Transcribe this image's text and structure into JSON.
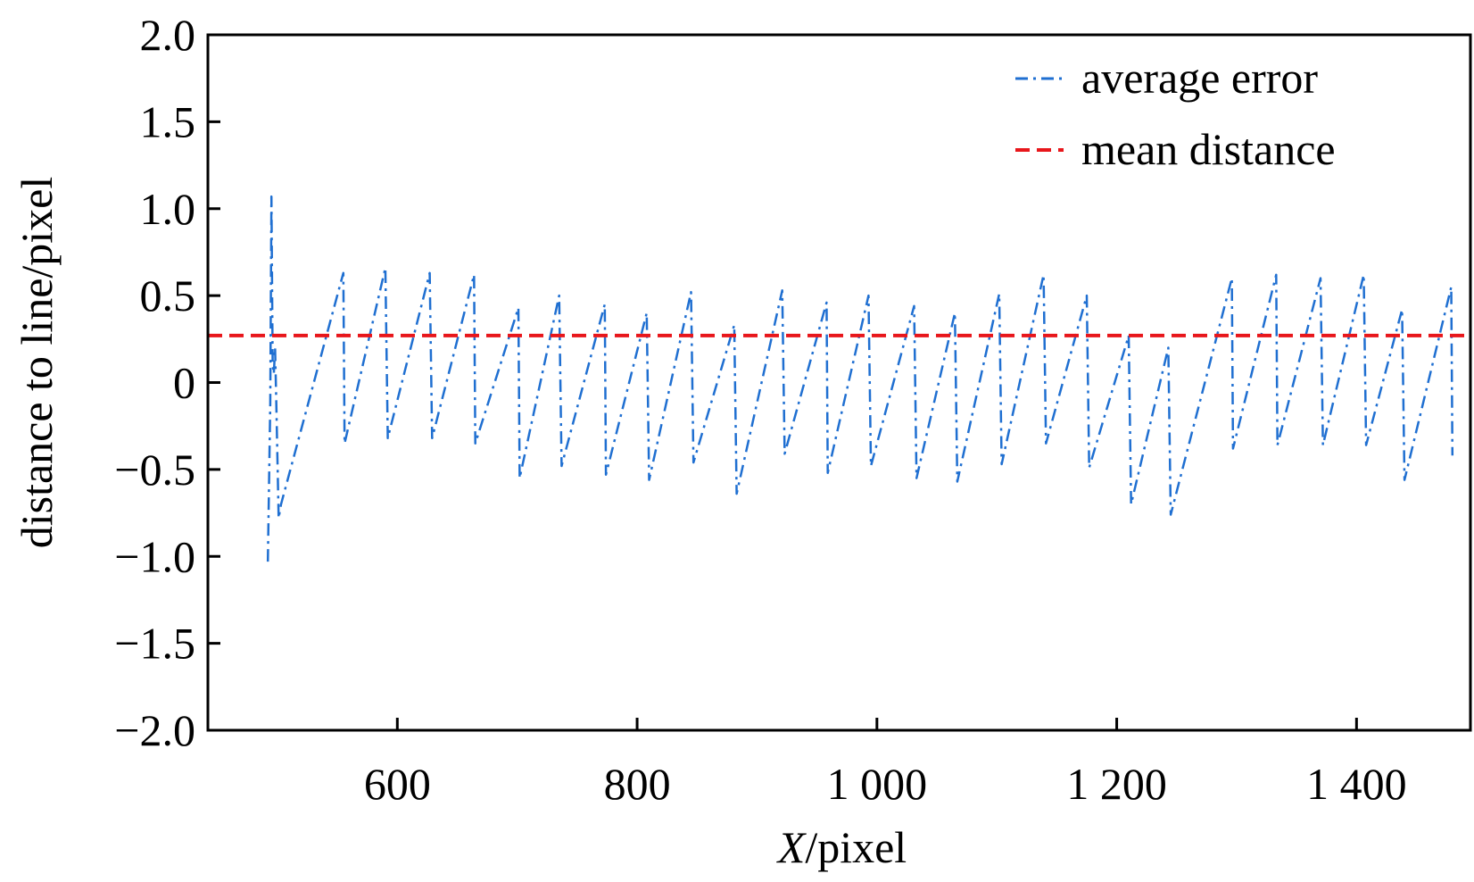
{
  "chart_data": {
    "type": "line",
    "title": "",
    "xlabel": "/pixel",
    "xlabel_italic_part": "X",
    "ylabel": "distance to line/pixel",
    "xlim": [
      442,
      1495
    ],
    "ylim": [
      -2.0,
      2.0
    ],
    "x_ticks": [
      {
        "value": 600,
        "label": "600"
      },
      {
        "value": 800,
        "label": "800"
      },
      {
        "value": 1000,
        "label": "1 000"
      },
      {
        "value": 1200,
        "label": "1 200"
      },
      {
        "value": 1400,
        "label": "1 400"
      }
    ],
    "y_ticks": [
      {
        "value": 2.0,
        "label": "2.0"
      },
      {
        "value": 1.5,
        "label": "1.5"
      },
      {
        "value": 1.0,
        "label": "1.0"
      },
      {
        "value": 0.5,
        "label": "0.5"
      },
      {
        "value": 0.0,
        "label": "0"
      },
      {
        "value": -0.5,
        "label": "−0.5"
      },
      {
        "value": -1.0,
        "label": "−1.0"
      },
      {
        "value": -1.5,
        "label": "−1.5"
      },
      {
        "value": -2.0,
        "label": "−2.0"
      }
    ],
    "grid": false,
    "legend_position": "top-right",
    "series": [
      {
        "name": "average error",
        "color": "#1f6fd1",
        "style": "dash-dot",
        "x": [
          492,
          494,
          495,
          496,
          497,
          498,
          499,
          501,
          503,
          555,
          556,
          590,
          592,
          627,
          629,
          664,
          665,
          701,
          702,
          735,
          737,
          773,
          774,
          808,
          810,
          845,
          847,
          881,
          883,
          921,
          923,
          958,
          959,
          993,
          995,
          1031,
          1033,
          1065,
          1067,
          1102,
          1104,
          1139,
          1141,
          1175,
          1177,
          1210,
          1212,
          1243,
          1245,
          1296,
          1297,
          1333,
          1334,
          1370,
          1372,
          1406,
          1408,
          1438,
          1440,
          1479,
          1480
        ],
        "y": [
          -1.03,
          -0.12,
          1.07,
          0.1,
          0.05,
          0.2,
          -0.1,
          -0.78,
          -0.7,
          0.63,
          -0.35,
          0.66,
          -0.32,
          0.63,
          -0.32,
          0.62,
          -0.35,
          0.43,
          -0.55,
          0.5,
          -0.48,
          0.45,
          -0.53,
          0.4,
          -0.56,
          0.52,
          -0.46,
          0.33,
          -0.64,
          0.53,
          -0.41,
          0.46,
          -0.52,
          0.5,
          -0.48,
          0.44,
          -0.55,
          0.4,
          -0.57,
          0.51,
          -0.47,
          0.62,
          -0.35,
          0.5,
          -0.49,
          0.27,
          -0.7,
          0.2,
          -0.76,
          0.6,
          -0.38,
          0.62,
          -0.36,
          0.6,
          -0.36,
          0.62,
          -0.36,
          0.42,
          -0.56,
          0.55,
          -0.42
        ]
      },
      {
        "name": "mean distance",
        "color": "#e8161b",
        "style": "dashed",
        "x": [
          442,
          1495
        ],
        "y": [
          0.27,
          0.27
        ]
      }
    ]
  }
}
